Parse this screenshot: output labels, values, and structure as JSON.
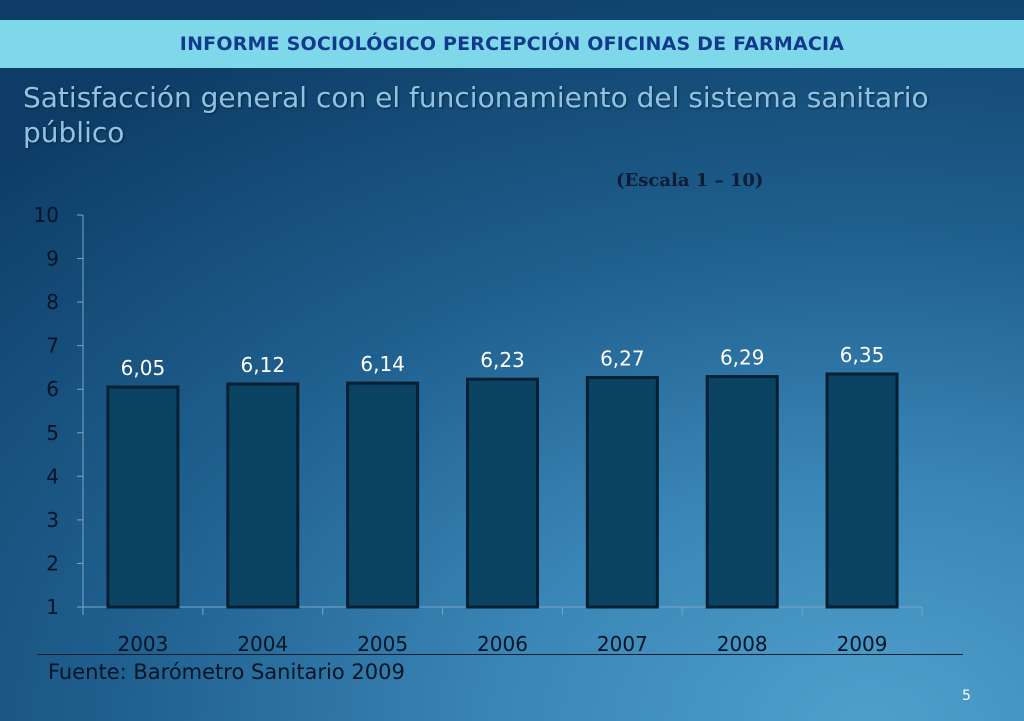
{
  "header": {
    "title": "INFORME SOCIOLÓGICO PERCEPCIÓN OFICINAS DE FARMACIA"
  },
  "slide": {
    "title": "Satisfacción general con el funcionamiento del sistema sanitario público",
    "scale_note": "(Escala 1 – 10)",
    "source": "Fuente: Barómetro Sanitario 2009",
    "page_number": "5"
  },
  "colors": {
    "bar": "#0b4363",
    "bar_border": "#061f33",
    "header_band": "#7fd8ea",
    "header_text": "#123a8c"
  },
  "chart_data": {
    "type": "bar",
    "title": "Satisfacción general con el funcionamiento del sistema sanitario público",
    "categories": [
      "2003",
      "2004",
      "2005",
      "2006",
      "2007",
      "2008",
      "2009"
    ],
    "values": [
      6.05,
      6.12,
      6.14,
      6.23,
      6.27,
      6.29,
      6.35
    ],
    "value_labels": [
      "6,05",
      "6,12",
      "6,14",
      "6,23",
      "6,27",
      "6,29",
      "6,35"
    ],
    "yticks": [
      "1",
      "2",
      "3",
      "4",
      "5",
      "6",
      "7",
      "8",
      "9",
      "10"
    ],
    "ylim": [
      1,
      10
    ],
    "xlabel": "",
    "ylabel": "",
    "grid": false,
    "legend": "none"
  }
}
